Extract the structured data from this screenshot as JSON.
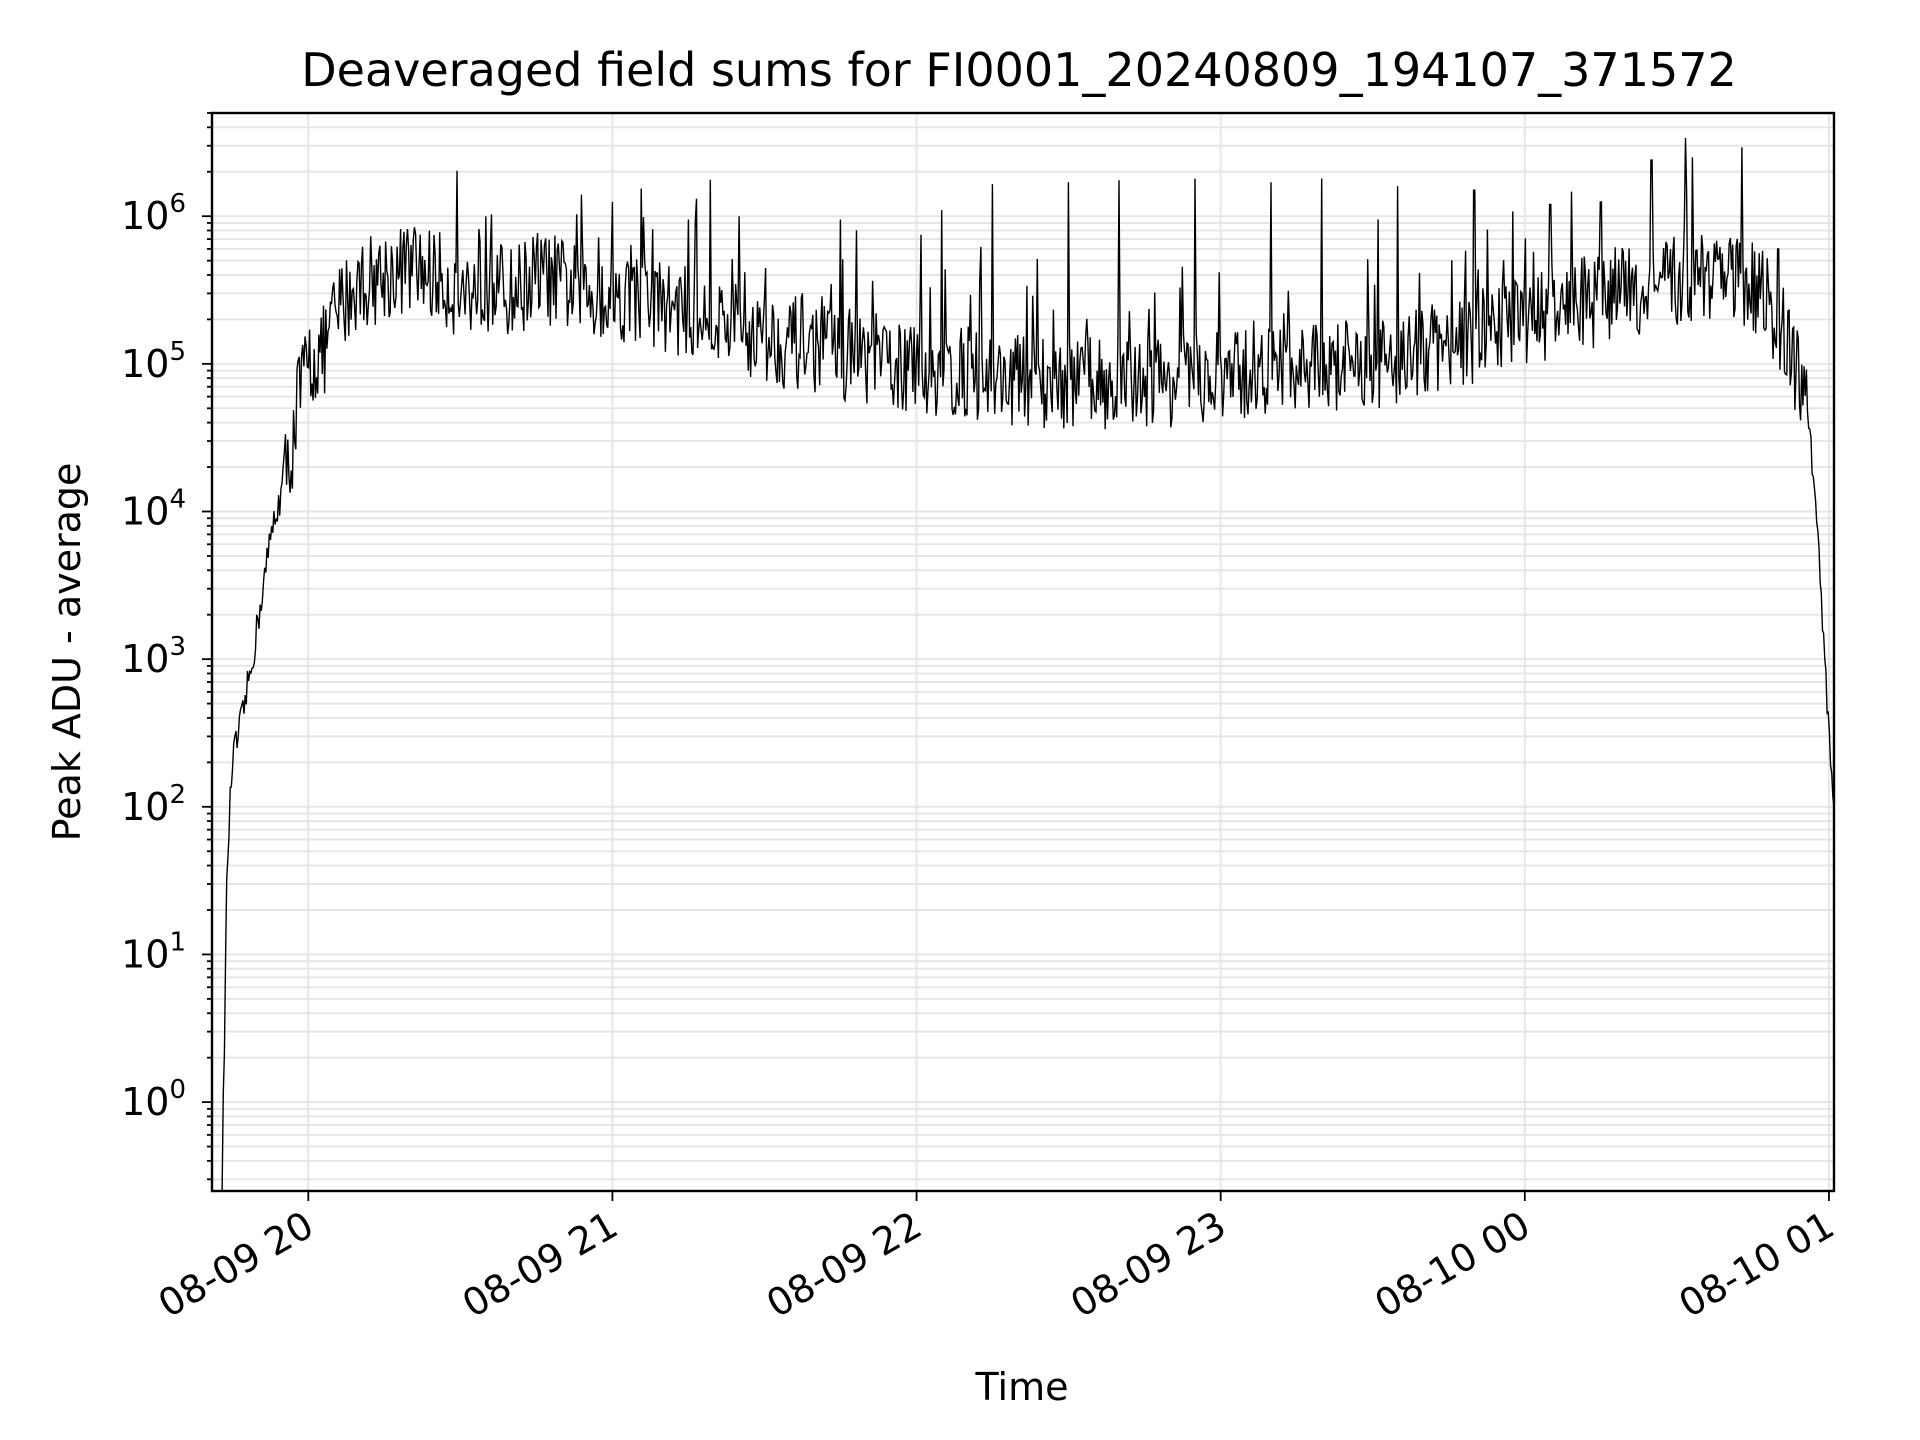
{
  "chart_data": {
    "type": "line",
    "title": "Deaveraged field sums for FI0001_20240809_194107_371572",
    "xlabel": "Time",
    "ylabel": "Peak ADU - average",
    "x_scale": "time",
    "y_scale": "log",
    "xlim": [
      "08-09 19:41",
      "08-10 01:01"
    ],
    "ylim": [
      0.25,
      5000000
    ],
    "x_ticks": [
      "08-09 20",
      "08-09 21",
      "08-09 22",
      "08-09 23",
      "08-10 00",
      "08-10 01"
    ],
    "y_ticks": [
      {
        "base": "10",
        "exp": "0"
      },
      {
        "base": "10",
        "exp": "1"
      },
      {
        "base": "10",
        "exp": "2"
      },
      {
        "base": "10",
        "exp": "3"
      },
      {
        "base": "10",
        "exp": "4"
      },
      {
        "base": "10",
        "exp": "5"
      },
      {
        "base": "10",
        "exp": "6"
      }
    ],
    "grid": true,
    "line_color": "#000000",
    "grid_color": "#e6e6e6",
    "series": [
      {
        "x": [
          "08-09 19:43",
          "08-09 19:44",
          "08-09 19:45",
          "08-09 19:47",
          "08-09 19:49",
          "08-09 19:51",
          "08-09 19:53",
          "08-09 19:55",
          "08-09 19:57",
          "08-09 19:58",
          "08-09 20:00",
          "08-09 20:03",
          "08-09 20:05",
          "08-09 20:08",
          "08-09 20:10",
          "08-09 20:15",
          "08-09 20:20",
          "08-09 20:25",
          "08-09 20:30",
          "08-09 20:35",
          "08-09 20:40",
          "08-09 20:45",
          "08-09 20:50",
          "08-09 20:55",
          "08-09 21:00",
          "08-09 21:10",
          "08-09 21:20",
          "08-09 21:30",
          "08-09 21:40",
          "08-09 21:50",
          "08-09 22:00",
          "08-09 22:15",
          "08-09 22:30",
          "08-09 22:45",
          "08-09 23:00",
          "08-09 23:15",
          "08-09 23:30",
          "08-09 23:45",
          "08-10 00:00",
          "08-10 00:10",
          "08-10 00:20",
          "08-10 00:30",
          "08-10 00:40",
          "08-10 00:45",
          "08-10 00:50",
          "08-10 00:54",
          "08-10 00:56",
          "08-10 00:58",
          "08-10 01:00",
          "08-10 01:01"
        ],
        "y": [
          0.3,
          40,
          200,
          400,
          1000,
          3000,
          8000,
          15000,
          30000,
          60000,
          100000,
          120000,
          200000,
          300000,
          350000,
          400000,
          450000,
          400000,
          300000,
          350000,
          300000,
          400000,
          350000,
          300000,
          300000,
          250000,
          200000,
          150000,
          130000,
          110000,
          90000,
          80000,
          75000,
          75000,
          80000,
          90000,
          100000,
          130000,
          200000,
          250000,
          300000,
          350000,
          400000,
          350000,
          200000,
          80000,
          40000,
          5000,
          300,
          80
        ],
        "spikes": [
          {
            "x": "08-09 20:35",
            "y": 1000000
          },
          {
            "x": "08-09 21:00",
            "y": 1250000
          },
          {
            "x": "08-09 21:15",
            "y": 950000
          },
          {
            "x": "08-09 21:25",
            "y": 1000000
          },
          {
            "x": "08-09 21:45",
            "y": 950000
          },
          {
            "x": "08-09 22:05",
            "y": 1100000
          },
          {
            "x": "08-09 22:15",
            "y": 1650000
          },
          {
            "x": "08-09 22:30",
            "y": 1700000
          },
          {
            "x": "08-09 22:40",
            "y": 1750000
          },
          {
            "x": "08-09 22:55",
            "y": 1800000
          },
          {
            "x": "08-09 23:10",
            "y": 1700000
          },
          {
            "x": "08-09 23:20",
            "y": 1800000
          },
          {
            "x": "08-09 23:35",
            "y": 1600000
          },
          {
            "x": "08-09 23:50",
            "y": 1500000
          },
          {
            "x": "08-10 00:05",
            "y": 1200000
          },
          {
            "x": "08-10 00:15",
            "y": 1250000
          },
          {
            "x": "08-10 00:25",
            "y": 2400000
          },
          {
            "x": "08-10 00:33",
            "y": 2500000
          },
          {
            "x": "08-10 00:50",
            "y": 600000
          }
        ]
      }
    ]
  }
}
